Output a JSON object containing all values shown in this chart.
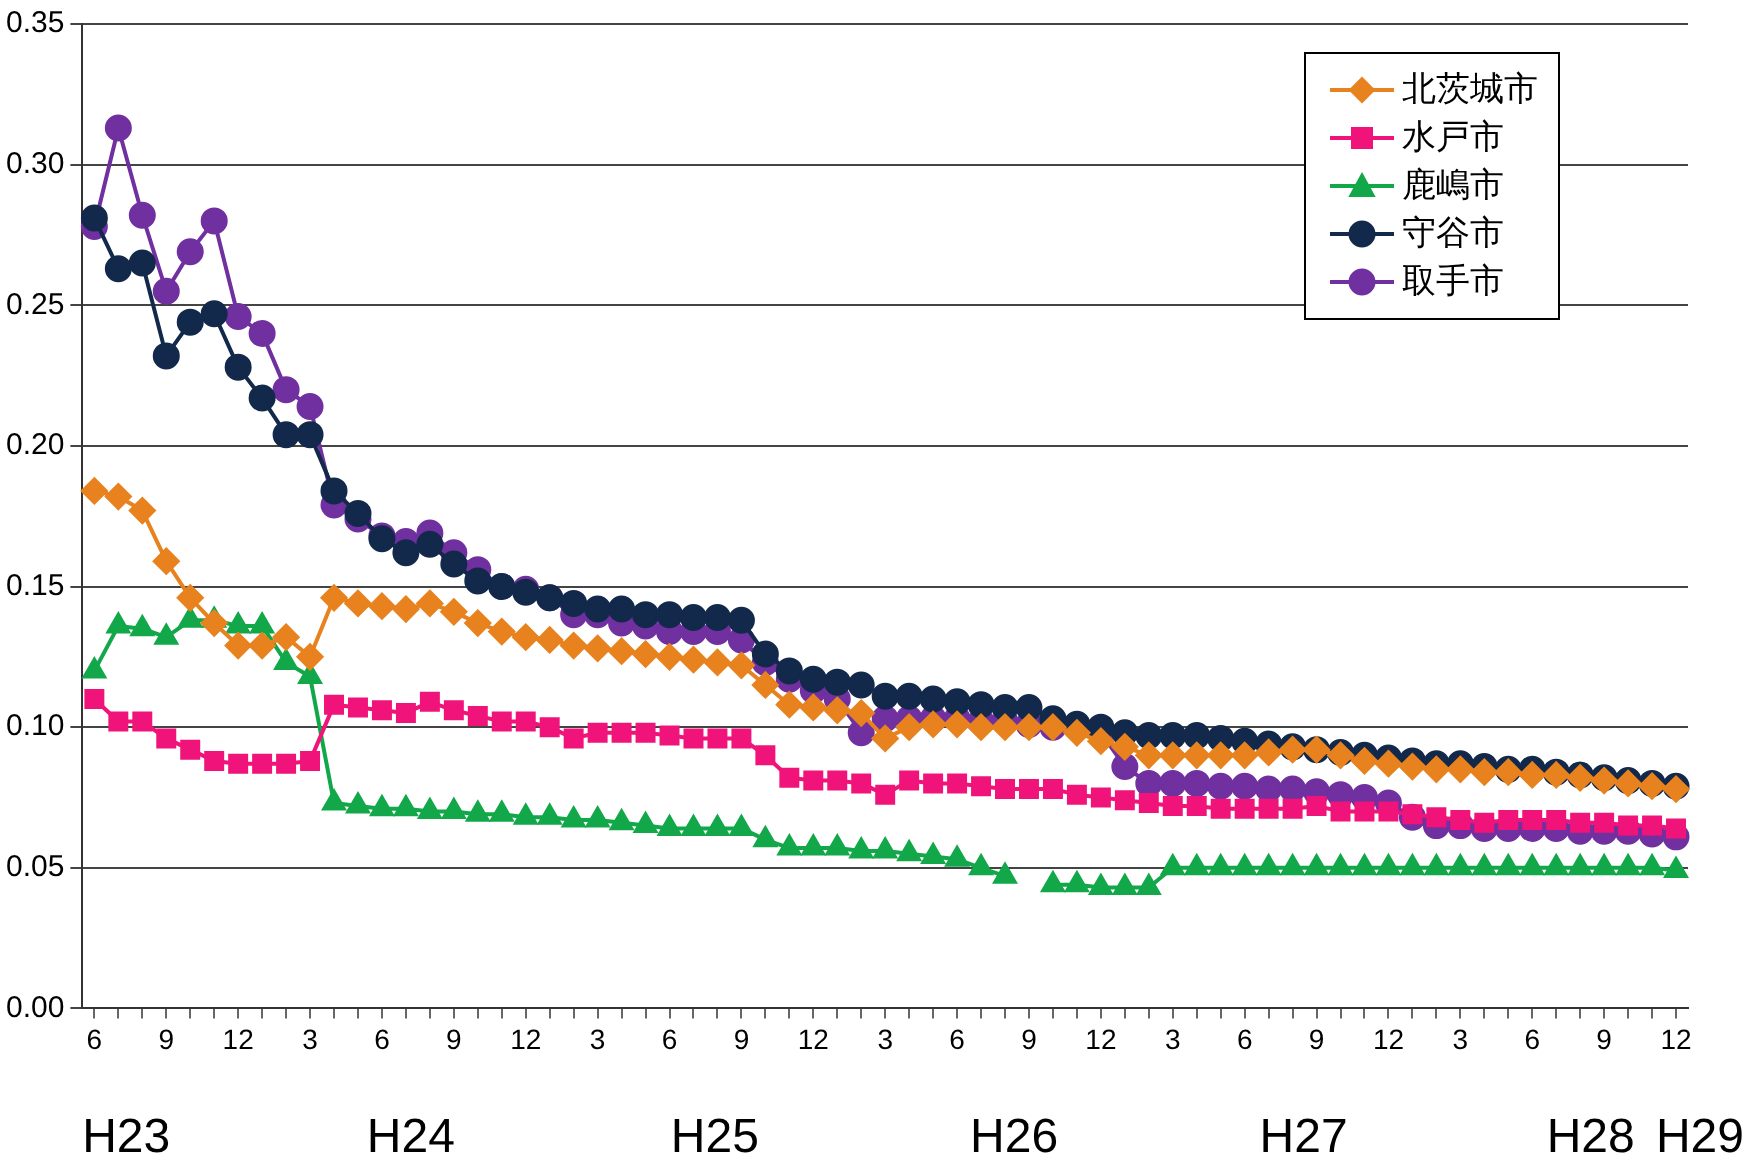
{
  "chart_data": {
    "type": "line",
    "categories": [
      "6",
      null,
      null,
      "9",
      null,
      null,
      "12",
      null,
      null,
      "3",
      null,
      null,
      "6",
      null,
      null,
      "9",
      null,
      null,
      "12",
      null,
      null,
      "3",
      null,
      null,
      "6",
      null,
      null,
      "9",
      null,
      null,
      "12",
      null,
      null,
      "3",
      null,
      null,
      "6",
      null,
      null,
      "9",
      null,
      null,
      "12",
      null,
      null,
      "3",
      null,
      null,
      "6",
      null,
      null,
      "9",
      null,
      null,
      "12",
      null,
      null,
      "3",
      null,
      null,
      "6",
      null,
      null,
      "9",
      null,
      null,
      "12"
    ],
    "series": [
      {
        "name": "北茨城市",
        "color": "#e8821e",
        "marker": "diamond",
        "values": [
          0.184,
          0.182,
          0.177,
          0.159,
          0.146,
          0.137,
          0.129,
          0.129,
          0.132,
          0.125,
          0.146,
          0.144,
          0.143,
          0.142,
          0.144,
          0.141,
          0.137,
          0.134,
          0.132,
          0.131,
          0.129,
          0.128,
          0.127,
          0.126,
          0.125,
          0.124,
          0.123,
          0.122,
          0.115,
          0.108,
          0.107,
          0.106,
          0.105,
          0.096,
          0.1,
          0.101,
          0.101,
          0.1,
          0.1,
          0.1,
          0.1,
          0.098,
          0.095,
          0.093,
          0.09,
          0.09,
          0.09,
          0.09,
          0.09,
          0.091,
          0.092,
          0.092,
          0.09,
          0.088,
          0.087,
          0.086,
          0.085,
          0.085,
          0.084,
          0.084,
          0.083,
          0.083,
          0.082,
          0.081,
          0.08,
          0.079,
          0.078
        ]
      },
      {
        "name": "水戸市",
        "color": "#f0147a",
        "marker": "square",
        "values": [
          0.11,
          0.102,
          0.102,
          0.096,
          0.092,
          0.088,
          0.087,
          0.087,
          0.087,
          0.088,
          0.108,
          0.107,
          0.106,
          0.105,
          0.109,
          0.106,
          0.104,
          0.102,
          0.102,
          0.1,
          0.096,
          0.098,
          0.098,
          0.098,
          0.097,
          0.096,
          0.096,
          0.096,
          0.09,
          0.082,
          0.081,
          0.081,
          0.08,
          0.076,
          0.081,
          0.08,
          0.08,
          0.079,
          0.078,
          0.078,
          0.078,
          0.076,
          0.075,
          0.074,
          0.073,
          0.072,
          0.072,
          0.071,
          0.071,
          0.071,
          0.071,
          0.072,
          0.07,
          0.07,
          0.07,
          0.069,
          0.068,
          0.067,
          0.066,
          0.067,
          0.067,
          0.067,
          0.066,
          0.066,
          0.065,
          0.065,
          0.064
        ]
      },
      {
        "name": "鹿嶋市",
        "color": "#12a84a",
        "marker": "triangle",
        "values": [
          0.12,
          0.136,
          0.135,
          0.132,
          0.138,
          0.138,
          0.136,
          0.136,
          0.123,
          0.118,
          0.073,
          0.072,
          0.071,
          0.071,
          0.07,
          0.07,
          0.069,
          0.069,
          0.068,
          0.068,
          0.067,
          0.067,
          0.066,
          0.065,
          0.064,
          0.064,
          0.064,
          0.064,
          0.06,
          0.057,
          0.057,
          0.057,
          0.056,
          0.056,
          0.055,
          0.054,
          0.053,
          0.05,
          0.047,
          null,
          0.044,
          0.044,
          0.043,
          0.043,
          0.043,
          0.05,
          0.05,
          0.05,
          0.05,
          0.05,
          0.05,
          0.05,
          0.05,
          0.05,
          0.05,
          0.05,
          0.05,
          0.05,
          0.05,
          0.05,
          0.05,
          0.05,
          0.05,
          0.05,
          0.05,
          0.05,
          0.049
        ]
      },
      {
        "name": "守谷市",
        "color": "#13294b",
        "marker": "circle",
        "values": [
          0.281,
          0.263,
          0.265,
          0.232,
          0.244,
          0.247,
          0.228,
          0.217,
          0.204,
          0.204,
          0.184,
          0.176,
          0.167,
          0.162,
          0.165,
          0.158,
          0.152,
          0.15,
          0.148,
          0.146,
          0.144,
          0.142,
          0.142,
          0.14,
          0.14,
          0.139,
          0.139,
          0.138,
          0.126,
          0.12,
          0.117,
          0.116,
          0.115,
          0.111,
          0.111,
          0.11,
          0.109,
          0.108,
          0.107,
          0.107,
          0.103,
          0.101,
          0.1,
          0.098,
          0.097,
          0.097,
          0.097,
          0.096,
          0.095,
          0.094,
          0.093,
          0.092,
          0.091,
          0.09,
          0.089,
          0.088,
          0.087,
          0.087,
          0.086,
          0.085,
          0.085,
          0.084,
          0.083,
          0.082,
          0.081,
          0.08,
          0.079
        ]
      },
      {
        "name": "取手市",
        "color": "#7030a0",
        "marker": "circle",
        "values": [
          0.278,
          0.313,
          0.282,
          0.255,
          0.269,
          0.28,
          0.246,
          0.24,
          0.22,
          0.214,
          0.179,
          0.174,
          0.168,
          0.166,
          0.169,
          0.162,
          0.156,
          0.15,
          0.149,
          0.146,
          0.14,
          0.14,
          0.137,
          0.136,
          0.134,
          0.134,
          0.134,
          0.131,
          0.123,
          0.117,
          0.113,
          0.11,
          0.098,
          0.103,
          0.103,
          0.103,
          0.103,
          0.102,
          0.102,
          0.101,
          0.1,
          0.1,
          0.098,
          0.086,
          0.08,
          0.08,
          0.08,
          0.079,
          0.079,
          0.078,
          0.078,
          0.077,
          0.076,
          0.075,
          0.073,
          0.068,
          0.065,
          0.065,
          0.064,
          0.064,
          0.064,
          0.064,
          0.063,
          0.063,
          0.063,
          0.062,
          0.061
        ]
      }
    ],
    "ylim": [
      0,
      0.35
    ],
    "yticks": [
      {
        "value": 0,
        "label": "0.00"
      },
      {
        "value": 0.05,
        "label": "0.05"
      },
      {
        "value": 0.1,
        "label": "0.10"
      },
      {
        "value": 0.15,
        "label": "0.15"
      },
      {
        "value": 0.2,
        "label": "0.20"
      },
      {
        "value": 0.25,
        "label": "0.25"
      },
      {
        "value": 0.3,
        "label": "0.30"
      },
      {
        "value": 0.35,
        "label": "0.35"
      }
    ],
    "grid": "y",
    "legend": "top right",
    "annotations": [
      "H23",
      "H24",
      "H25",
      "H26",
      "H27",
      "H28",
      "H29"
    ]
  }
}
